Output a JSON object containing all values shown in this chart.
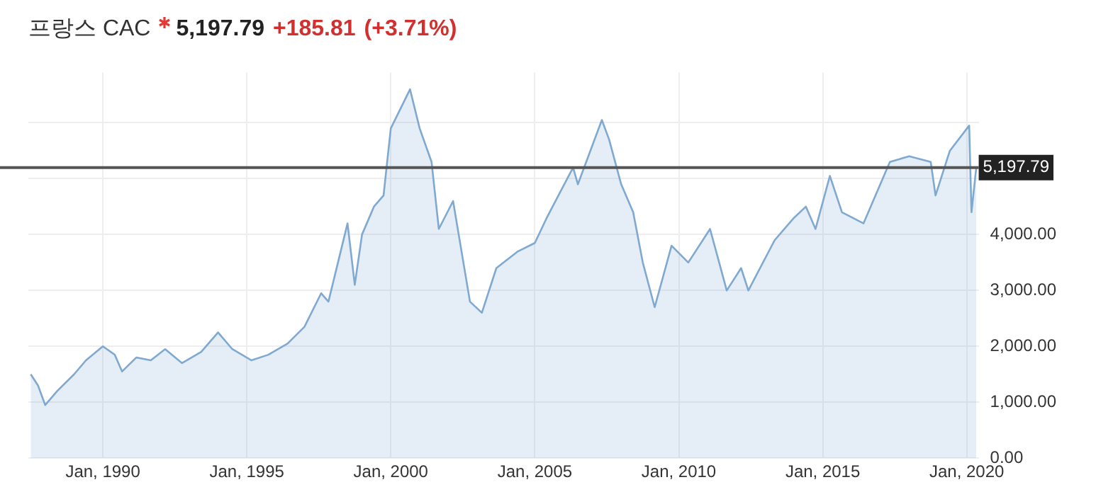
{
  "chart_data": {
    "type": "area",
    "title": "프랑스 CAC",
    "annotations": [
      "5,197.79",
      "+185.81",
      "(+3.71%)"
    ],
    "x": [
      "1987-07",
      "1987-10",
      "1988-01",
      "1988-06",
      "1989-01",
      "1989-06",
      "1990-01",
      "1990-06",
      "1990-09",
      "1991-03",
      "1991-09",
      "1992-03",
      "1992-10",
      "1993-06",
      "1994-01",
      "1994-07",
      "1995-03",
      "1995-10",
      "1996-06",
      "1997-01",
      "1997-08",
      "1997-11",
      "1998-07",
      "1998-10",
      "1999-01",
      "1999-06",
      "1999-10",
      "2000-01",
      "2000-09",
      "2001-01",
      "2001-06",
      "2001-09",
      "2002-03",
      "2002-10",
      "2003-03",
      "2003-09",
      "2004-06",
      "2005-01",
      "2005-06",
      "2006-05",
      "2006-07",
      "2007-05",
      "2007-08",
      "2008-01",
      "2008-06",
      "2008-10",
      "2009-03",
      "2009-10",
      "2010-05",
      "2011-02",
      "2011-09",
      "2012-03",
      "2012-06",
      "2013-05",
      "2014-01",
      "2014-06",
      "2014-10",
      "2015-04",
      "2015-09",
      "2016-06",
      "2017-05",
      "2018-01",
      "2018-10",
      "2018-12",
      "2019-06",
      "2020-02",
      "2020-03",
      "2020-05"
    ],
    "series": [
      {
        "color": "#7fa9d1",
        "values": [
          1500,
          1300,
          950,
          1200,
          1500,
          1750,
          2000,
          1850,
          1550,
          1800,
          1750,
          1950,
          1700,
          1900,
          2250,
          1950,
          1750,
          1850,
          2050,
          2350,
          2950,
          2800,
          4200,
          3100,
          4000,
          4500,
          4700,
          5900,
          6600,
          5900,
          5300,
          4100,
          4600,
          2800,
          2600,
          3400,
          3700,
          3850,
          4300,
          5200,
          4900,
          6050,
          5700,
          4900,
          4400,
          3500,
          2700,
          3800,
          3500,
          4100,
          3000,
          3400,
          3000,
          3900,
          4300,
          4500,
          4100,
          5050,
          4400,
          4200,
          5300,
          5400,
          5300,
          4700,
          5500,
          5950,
          4400,
          5200
        ]
      }
    ],
    "ylim": [
      0,
      6900
    ],
    "yticks": [
      {
        "value": 0,
        "label": "0.00"
      },
      {
        "value": 1000,
        "label": "1,000.00"
      },
      {
        "value": 2000,
        "label": "2,000.00"
      },
      {
        "value": 3000,
        "label": "3,000.00"
      },
      {
        "value": 4000,
        "label": "4,000.00"
      },
      {
        "value": 5000,
        "label": null
      },
      {
        "value": 6000,
        "label": null
      }
    ],
    "xlim": [
      "1987-06",
      "2020-06"
    ],
    "xticks": [
      {
        "value": "1990-01",
        "label": "Jan, 1990"
      },
      {
        "value": "1995-01",
        "label": "Jan, 1995"
      },
      {
        "value": "2000-01",
        "label": "Jan, 2000"
      },
      {
        "value": "2005-01",
        "label": "Jan, 2005"
      },
      {
        "value": "2010-01",
        "label": "Jan, 2010"
      },
      {
        "value": "2015-01",
        "label": "Jan, 2015"
      },
      {
        "value": "2020-01",
        "label": "Jan, 2020"
      }
    ],
    "ref_lines": [
      {
        "axis": "y",
        "value": 5197.79,
        "label": "5,197.79",
        "color": "#555555"
      }
    ],
    "grid": true,
    "legend": false,
    "marker": "none"
  }
}
